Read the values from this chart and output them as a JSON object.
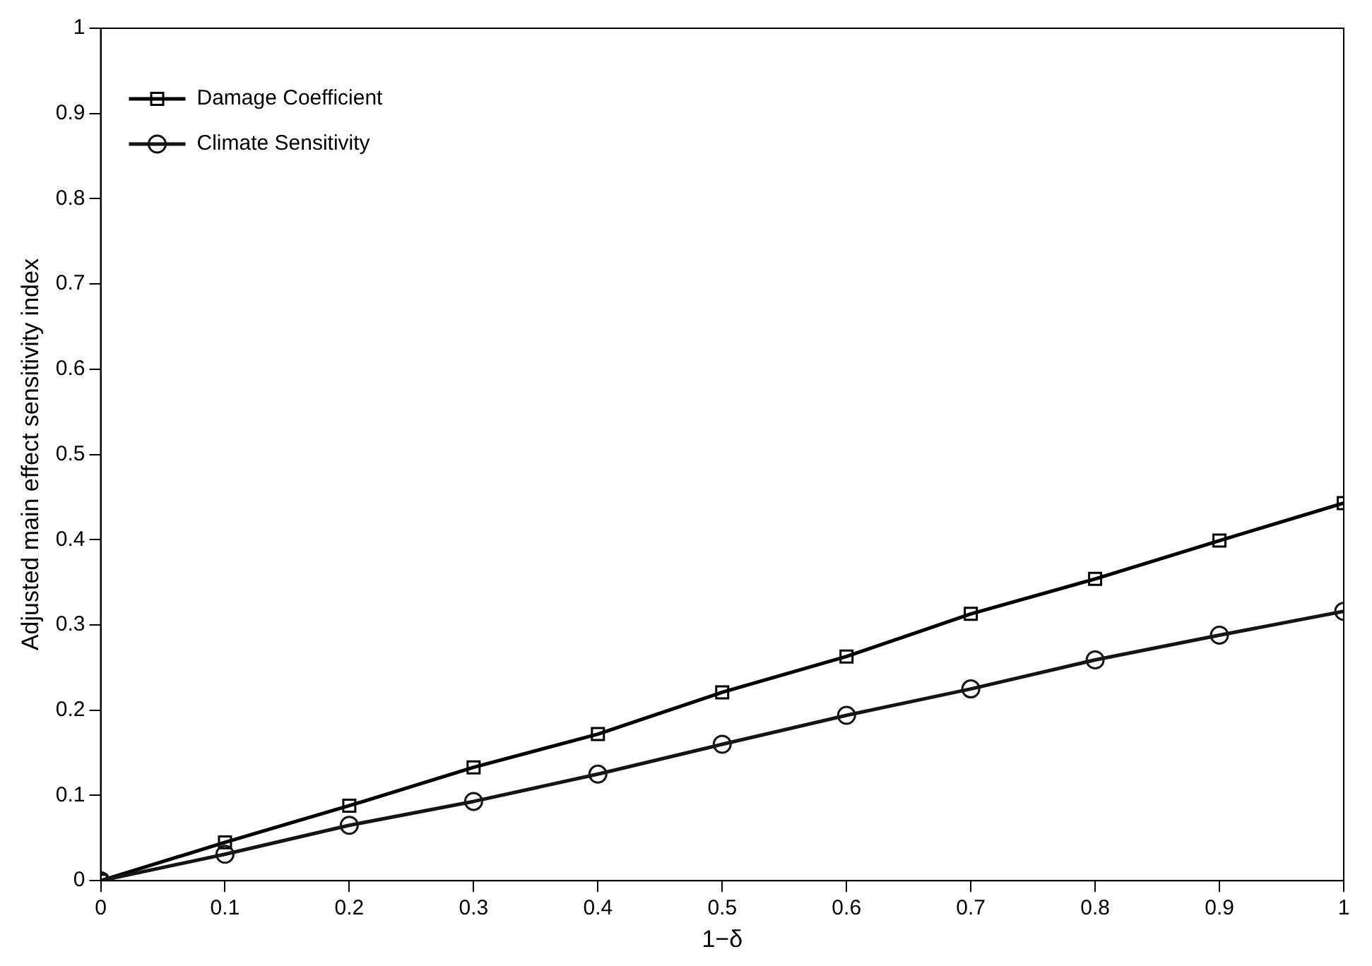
{
  "chart_data": {
    "type": "line",
    "xlabel": "1−δ",
    "ylabel": "Adjusted main effect sensitivity index",
    "x": [
      0,
      0.1,
      0.2,
      0.3,
      0.4,
      0.5,
      0.6,
      0.7,
      0.8,
      0.9,
      1
    ],
    "series": [
      {
        "name": "Damage Coefficient",
        "color": "#000000",
        "marker": "square",
        "values": [
          0,
          0.045,
          0.088,
          0.133,
          0.172,
          0.221,
          0.263,
          0.313,
          0.354,
          0.399,
          0.443
        ]
      },
      {
        "name": "Climate Sensitivity",
        "color": "#141414",
        "marker": "circle",
        "values": [
          0,
          0.031,
          0.065,
          0.093,
          0.125,
          0.16,
          0.194,
          0.225,
          0.259,
          0.288,
          0.316
        ]
      }
    ],
    "xlim": [
      0,
      1
    ],
    "xticks": [
      0,
      0.1,
      0.2,
      0.3,
      0.4,
      0.5,
      0.6,
      0.7,
      0.8,
      0.9,
      1
    ],
    "ylim": [
      0,
      1
    ],
    "yticks": [
      0,
      0.1,
      0.2,
      0.3,
      0.4,
      0.5,
      0.6,
      0.7,
      0.8,
      0.9,
      1
    ],
    "grid": false,
    "legend": "top left",
    "line_style": "solid"
  }
}
